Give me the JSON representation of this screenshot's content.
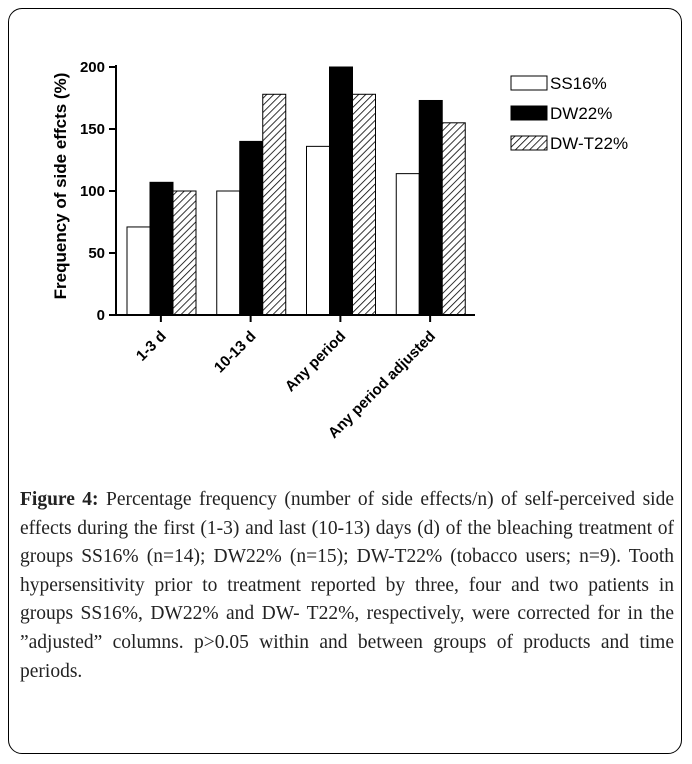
{
  "chart_data": {
    "type": "bar",
    "title": "",
    "xlabel": "",
    "ylabel": "Frequency of side effcts (%)",
    "ylim": [
      0,
      200
    ],
    "yticks": [
      0,
      50,
      100,
      150,
      200
    ],
    "categories": [
      "1-3 d",
      "10-13 d",
      "Any period",
      "Any period adjusted"
    ],
    "series": [
      {
        "name": "SS16%",
        "values": [
          71,
          100,
          136,
          114
        ],
        "fill": "#ffffff"
      },
      {
        "name": "DW22%",
        "values": [
          107,
          140,
          200,
          173
        ],
        "fill": "#000000"
      },
      {
        "name": "DW-T22%",
        "values": [
          100,
          178,
          178,
          155
        ],
        "fill": "hatch"
      }
    ],
    "legend_position": "top-right"
  },
  "caption": {
    "label": "Figure 4:",
    "text": " Percentage frequency (number of side effects/n) of self-perceived side effects during the first (1-3) and last (10-13) days (d) of the bleaching treatment of groups SS16% (n=14); DW22% (n=15); DW-T22% (tobacco users; n=9). Tooth hypersensitivity prior to treatment reported by three, four and two patients in groups SS16%, DW22% and DW- T22%, respectively, were corrected for in the ”adjusted” columns. p>0.05 within and between groups of products and time periods."
  }
}
